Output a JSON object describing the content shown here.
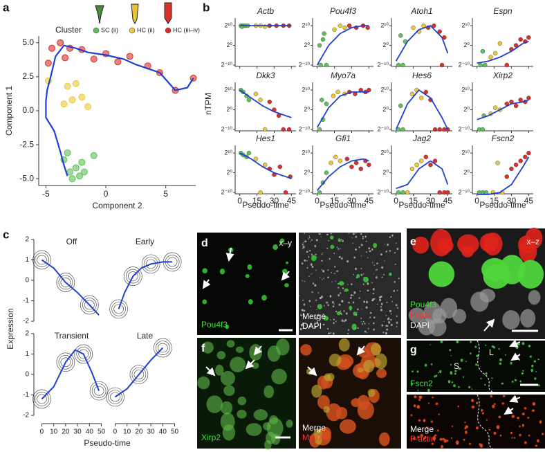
{
  "panel_labels": [
    "a",
    "b",
    "c",
    "d",
    "e",
    "f",
    "g"
  ],
  "trajectory": {
    "type": "scatter",
    "xlabel": "Component 2",
    "ylabel": "Component 1",
    "legend_title": "Cluster",
    "clusters": [
      {
        "name": "SC (ii)",
        "color": "#5fbf5a"
      },
      {
        "name": "HC (ii)",
        "color": "#e9c83c"
      },
      {
        "name": "HC (iii–iv)",
        "color": "#d8302a"
      }
    ],
    "xlim": [
      -5.6,
      7.5
    ],
    "ylim": [
      -5.5,
      5.5
    ],
    "xticks": [
      -5,
      0,
      5
    ],
    "yticks": [
      {
        "value": 5,
        "label": "5.0"
      },
      2.5,
      {
        "value": 0,
        "label": "0.0"
      },
      -2.5,
      {
        "value": -5,
        "label": "-5.0"
      }
    ],
    "path_color": "#1f3fd1",
    "path": {
      "x": [
        -3.2,
        -3.5,
        -3.8,
        -4.3,
        -5,
        -5,
        -4.9,
        -4.6,
        -4.2,
        -3.5,
        -2.5,
        -1.5,
        0,
        1.5,
        2.5,
        4.5,
        5.8,
        6.8,
        7.3
      ],
      "y": [
        -4.8,
        -4,
        -3,
        -1.5,
        -0.5,
        0.7,
        1.5,
        2.5,
        4,
        4.8,
        4.6,
        4.3,
        4.1,
        3.8,
        3.4,
        2.8,
        1.5,
        1.7,
        2.4
      ]
    },
    "points": {
      "x": [
        -3,
        -2.5,
        -2,
        -3.5,
        -2.8,
        -1.8,
        -3.2,
        -1,
        -2.2,
        -3.2,
        -2.5,
        -2,
        -1.5,
        -2.8,
        -4.8,
        -3.5,
        -4.5,
        -3.8,
        -3,
        -2,
        -1,
        0,
        1,
        2,
        3.5,
        4.5,
        5.8,
        7.3,
        -4.8,
        -3.4
      ],
      "y": [
        -4.5,
        -4.2,
        -3.8,
        -3.6,
        -5,
        -4.5,
        -3.1,
        -3.3,
        -4.8,
        1.8,
        2,
        1,
        0.3,
        0.8,
        2.2,
        0.5,
        4.6,
        5,
        4.6,
        4.5,
        3.8,
        4.2,
        3.6,
        4,
        3.3,
        2.8,
        1.5,
        2.4,
        3.5,
        3.9
      ],
      "cluster": [
        0,
        0,
        0,
        0,
        0,
        0,
        0,
        0,
        0,
        1,
        1,
        1,
        1,
        1,
        1,
        1,
        2,
        2,
        2,
        2,
        2,
        2,
        2,
        2,
        2,
        2,
        2,
        2,
        2,
        2
      ]
    }
  },
  "expression": {
    "type": "scatter",
    "xlabel": "Pseudo-time",
    "ylabel": "nTPM",
    "curve_color": "#1f3fd1",
    "xlim": [
      -4,
      49
    ],
    "ylim": [
      -10.7,
      13.9
    ],
    "xticks": [
      0,
      15,
      30,
      45
    ],
    "yticks": [
      {
        "value": 10,
        "label": "2¹⁰"
      },
      {
        "value": 0,
        "label": "2⁰"
      },
      {
        "value": -10,
        "label": "2⁻¹⁰"
      }
    ],
    "curve_x": [
      0,
      10,
      20,
      30,
      40,
      45
    ],
    "genes": [
      {
        "name": "Actb",
        "curve": [
          10,
          10,
          10,
          10,
          10,
          10
        ],
        "points": [
          [
            1,
            10,
            0
          ],
          [
            3,
            10,
            0
          ],
          [
            5,
            10,
            0
          ],
          [
            7,
            10,
            0
          ],
          [
            2,
            9.5,
            0
          ],
          [
            14,
            10,
            1
          ],
          [
            18,
            10,
            1
          ],
          [
            22,
            9.5,
            1
          ],
          [
            26,
            10,
            2
          ],
          [
            32,
            10,
            2
          ],
          [
            38,
            10,
            2
          ],
          [
            43,
            10,
            2
          ]
        ]
      },
      {
        "name": "Pou4f3",
        "curve": [
          -10,
          0,
          6,
          9,
          10,
          10
        ],
        "points": [
          [
            2,
            0,
            0
          ],
          [
            5,
            3,
            0
          ],
          [
            3,
            -10,
            0
          ],
          [
            8,
            -10,
            0
          ],
          [
            6,
            6,
            0
          ],
          [
            15,
            8,
            1
          ],
          [
            20,
            10,
            1
          ],
          [
            24,
            9,
            1
          ],
          [
            28,
            10,
            2
          ],
          [
            34,
            9,
            2
          ],
          [
            40,
            10,
            2
          ],
          [
            44,
            9,
            2
          ]
        ]
      },
      {
        "name": "Atoh1",
        "curve": [
          -8,
          2,
          8,
          10,
          4,
          -4
        ],
        "points": [
          [
            2,
            -10,
            0
          ],
          [
            6,
            -10,
            0
          ],
          [
            4,
            5,
            0
          ],
          [
            8,
            2,
            0
          ],
          [
            15,
            9,
            1
          ],
          [
            20,
            7,
            1
          ],
          [
            24,
            10,
            1
          ],
          [
            28,
            9,
            2
          ],
          [
            33,
            10,
            2
          ],
          [
            38,
            7,
            2
          ],
          [
            42,
            4,
            2
          ],
          [
            40,
            -10,
            2
          ]
        ]
      },
      {
        "name": "Espn",
        "curve": [
          -9,
          -8,
          -6,
          -3,
          1,
          2
        ],
        "points": [
          [
            3,
            -10,
            0
          ],
          [
            7,
            -10,
            0
          ],
          [
            5,
            -3,
            0
          ],
          [
            12,
            -6,
            1
          ],
          [
            16,
            -4,
            1
          ],
          [
            20,
            1,
            1
          ],
          [
            26,
            -10,
            2
          ],
          [
            30,
            -2,
            2
          ],
          [
            34,
            0,
            2
          ],
          [
            38,
            3,
            2
          ],
          [
            42,
            2,
            2
          ],
          [
            45,
            4,
            2
          ]
        ]
      },
      {
        "name": "Dkk3",
        "curve": [
          10,
          6,
          2,
          -1,
          -3,
          -4
        ],
        "points": [
          [
            1,
            10,
            0
          ],
          [
            3,
            9,
            0
          ],
          [
            6,
            7,
            0
          ],
          [
            8,
            5,
            0
          ],
          [
            14,
            8,
            1
          ],
          [
            18,
            5,
            1
          ],
          [
            22,
            -10,
            1
          ],
          [
            26,
            4,
            2
          ],
          [
            30,
            0,
            2
          ],
          [
            34,
            -3,
            2
          ],
          [
            38,
            -10,
            2
          ],
          [
            43,
            -10,
            2
          ]
        ]
      },
      {
        "name": "Myo7a",
        "curve": [
          -9,
          1,
          7,
          9,
          9,
          9
        ],
        "points": [
          [
            2,
            -10,
            0
          ],
          [
            5,
            -5,
            0
          ],
          [
            4,
            5,
            0
          ],
          [
            8,
            3,
            0
          ],
          [
            14,
            7,
            1
          ],
          [
            18,
            9,
            1
          ],
          [
            24,
            8,
            1
          ],
          [
            28,
            9,
            2
          ],
          [
            33,
            8,
            2
          ],
          [
            38,
            10,
            2
          ],
          [
            42,
            9,
            2
          ],
          [
            45,
            10,
            2
          ]
        ]
      },
      {
        "name": "Hes6",
        "curve": [
          -10,
          3,
          10,
          6,
          -4,
          -10
        ],
        "points": [
          [
            2,
            -10,
            0
          ],
          [
            6,
            -10,
            0
          ],
          [
            4,
            2,
            0
          ],
          [
            14,
            8,
            1
          ],
          [
            18,
            10,
            1
          ],
          [
            22,
            6,
            1
          ],
          [
            26,
            9,
            2
          ],
          [
            30,
            5,
            2
          ],
          [
            34,
            -10,
            2
          ],
          [
            38,
            -10,
            2
          ],
          [
            42,
            -10,
            2
          ],
          [
            45,
            -10,
            2
          ]
        ]
      },
      {
        "name": "Xirp2",
        "curve": [
          -5,
          -3,
          0,
          3,
          4,
          5
        ],
        "points": [
          [
            2,
            -10,
            0
          ],
          [
            5,
            -10,
            0
          ],
          [
            6,
            -3,
            0
          ],
          [
            12,
            -2,
            1
          ],
          [
            16,
            1,
            1
          ],
          [
            20,
            0,
            1
          ],
          [
            26,
            3,
            2
          ],
          [
            30,
            4,
            2
          ],
          [
            34,
            2,
            2
          ],
          [
            38,
            5,
            2
          ],
          [
            42,
            4,
            2
          ],
          [
            45,
            6,
            2
          ]
        ]
      },
      {
        "name": "Hes1",
        "curve": [
          10,
          7,
          3,
          0,
          -2,
          -3
        ],
        "points": [
          [
            1,
            10,
            0
          ],
          [
            3,
            9,
            0
          ],
          [
            6,
            8,
            0
          ],
          [
            8,
            10,
            0
          ],
          [
            14,
            7,
            1
          ],
          [
            18,
            -10,
            1
          ],
          [
            22,
            4,
            1
          ],
          [
            26,
            2,
            2
          ],
          [
            30,
            -1,
            2
          ],
          [
            35,
            3,
            2
          ],
          [
            40,
            -10,
            2
          ],
          [
            44,
            -2,
            2
          ]
        ]
      },
      {
        "name": "Gfi1",
        "curve": [
          -9,
          -2,
          3,
          6,
          7,
          6
        ],
        "points": [
          [
            2,
            -10,
            0
          ],
          [
            5,
            -5,
            0
          ],
          [
            8,
            0,
            0
          ],
          [
            12,
            5,
            1
          ],
          [
            16,
            8,
            1
          ],
          [
            20,
            6,
            1
          ],
          [
            26,
            7,
            2
          ],
          [
            30,
            3,
            2
          ],
          [
            34,
            5,
            2
          ],
          [
            38,
            2,
            2
          ],
          [
            42,
            6,
            2
          ],
          [
            45,
            4,
            2
          ]
        ]
      },
      {
        "name": "Jag2",
        "curve": [
          -8,
          -6,
          2,
          6,
          2,
          -6
        ],
        "points": [
          [
            2,
            -10,
            0
          ],
          [
            6,
            -10,
            0
          ],
          [
            10,
            -10,
            1
          ],
          [
            14,
            2,
            1
          ],
          [
            18,
            4,
            1
          ],
          [
            22,
            6,
            1
          ],
          [
            26,
            8,
            2
          ],
          [
            30,
            4,
            2
          ],
          [
            34,
            6,
            2
          ],
          [
            38,
            -10,
            2
          ],
          [
            42,
            -10,
            2
          ],
          [
            45,
            -10,
            2
          ]
        ]
      },
      {
        "name": "Fscn2",
        "curve": [
          -11,
          -11,
          -10,
          -6,
          3,
          8
        ],
        "points": [
          [
            2,
            -10,
            0
          ],
          [
            5,
            -10,
            0
          ],
          [
            8,
            -10,
            0
          ],
          [
            14,
            -10,
            1
          ],
          [
            18,
            5,
            1
          ],
          [
            22,
            -10,
            1
          ],
          [
            26,
            -2,
            2
          ],
          [
            30,
            2,
            2
          ],
          [
            34,
            4,
            2
          ],
          [
            38,
            6,
            2
          ],
          [
            42,
            8,
            2
          ],
          [
            45,
            10,
            2
          ]
        ]
      }
    ]
  },
  "patterns": {
    "type": "line",
    "xlabel": "Pseudo-time",
    "ylabel": "Expression",
    "color": "#1f3fd1",
    "xlim": [
      -2,
      52
    ],
    "ylim": [
      -2.2,
      2.2
    ],
    "xticks": [
      0,
      10,
      20,
      30,
      40,
      50
    ],
    "yticks": [
      2,
      1,
      0,
      -1,
      -2
    ],
    "series": [
      {
        "name": "Off",
        "x": [
          0,
          10,
          20,
          30,
          40,
          48
        ],
        "y": [
          1,
          0.6,
          -0.1,
          -0.6,
          -1.2,
          -1.7
        ]
      },
      {
        "name": "Early",
        "x": [
          3,
          8,
          15,
          22,
          30,
          40,
          48
        ],
        "y": [
          -1.4,
          -0.6,
          0.2,
          0.6,
          0.8,
          0.9,
          0.9
        ]
      },
      {
        "name": "Transient",
        "x": [
          0,
          10,
          20,
          28,
          35,
          42,
          48
        ],
        "y": [
          -1.2,
          -0.6,
          0.6,
          1.2,
          1.0,
          0.1,
          -0.8
        ]
      },
      {
        "name": "Late",
        "x": [
          0,
          10,
          20,
          30,
          40
        ],
        "y": [
          -1.1,
          -0.7,
          0,
          0.7,
          1.3
        ]
      }
    ]
  },
  "images": {
    "d": {
      "tag": "x–y",
      "stain": "Pou4f3",
      "merge": [
        "Merge",
        "DAPI"
      ]
    },
    "e": {
      "tag": "x–z",
      "stains": [
        "Pou4f3",
        "Pvalb",
        "DAPI"
      ]
    },
    "f": {
      "stain": "Xirp2",
      "merge": [
        "Merge",
        "Myo7a"
      ]
    },
    "g": {
      "stain": "Fscn2",
      "regions": [
        "S",
        "L"
      ],
      "merge": [
        "Merge",
        "F-actin"
      ]
    }
  }
}
